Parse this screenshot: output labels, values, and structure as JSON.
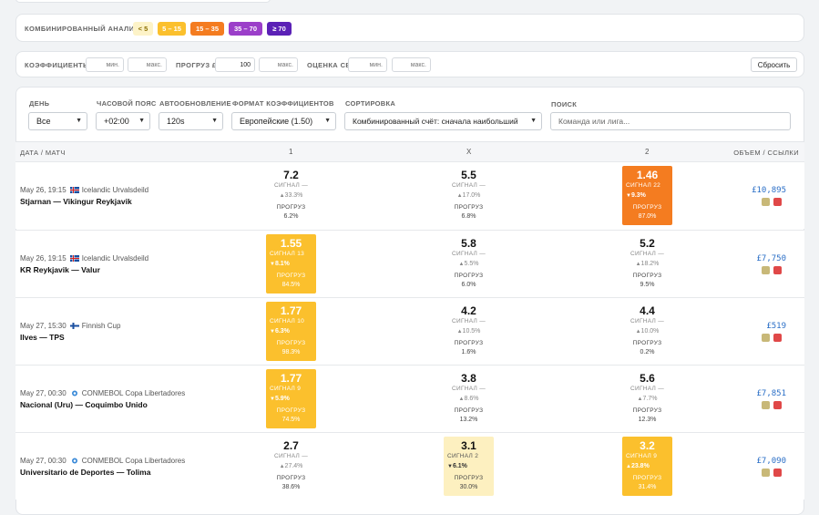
{
  "combined": {
    "label": "Комбинированный анализ",
    "chips": [
      {
        "label": "< 5",
        "bg": "#fdf3c8",
        "fg": "#8a6d00"
      },
      {
        "label": "5 – 15",
        "bg": "#fbc02d",
        "fg": "#ffffff"
      },
      {
        "label": "15 – 35",
        "bg": "#f47c20",
        "fg": "#ffffff"
      },
      {
        "label": "35 – 70",
        "bg": "#9b3fc9",
        "fg": "#ffffff"
      },
      {
        "label": "≥ 70",
        "bg": "#5b21b6",
        "fg": "#ffffff"
      }
    ]
  },
  "filters": {
    "odds_label": "Коэффициенты",
    "min": "мин.",
    "max": "макс.",
    "forecast_label": "Прогруз £",
    "forecast_value": "100",
    "cb_label": "Оценка CB",
    "reset": "Сбросить"
  },
  "controls": {
    "day": {
      "label": "День",
      "value": "Все"
    },
    "tz": {
      "label": "Часовой пояс",
      "value": "+02:00"
    },
    "refresh": {
      "label": "Автообновление",
      "value": "120s"
    },
    "format": {
      "label": "Формат коэффициентов",
      "value": "Европейские (1.50)"
    },
    "sort": {
      "label": "Сортировка",
      "value": "Комбинированный счёт: сначала наибольший"
    },
    "search": {
      "label": "Поиск",
      "placeholder": "Команда или лига..."
    }
  },
  "table": {
    "headers": {
      "match": "Дата / Матч",
      "c1": "1",
      "cx": "X",
      "c2": "2",
      "vol": "Объем / ссылки"
    },
    "signal_label": "Сигнал",
    "forecast_label": "Прогруз",
    "rows": [
      {
        "date": "May 26, 19:15",
        "league": "Icelandic Urvalsdeild",
        "home": "Stjarnan",
        "away": "Vikingur Reykjavik",
        "volume": "£10,895",
        "cells": [
          {
            "odd": "7.2",
            "signal": "Сигнал —",
            "dir": "up",
            "change": "33.3%",
            "forecast": "6.2%",
            "hl": ""
          },
          {
            "odd": "5.5",
            "signal": "Сигнал —",
            "dir": "up",
            "change": "17.0%",
            "forecast": "6.8%",
            "hl": ""
          },
          {
            "odd": "1.46",
            "signal": "Сигнал 22",
            "dir": "down",
            "change": "9.3%",
            "forecast": "87.0%",
            "hl": "#f47c20"
          }
        ]
      },
      {
        "date": "May 26, 19:15",
        "league": "Icelandic Urvalsdeild",
        "home": "KR Reykjavik",
        "away": "Valur",
        "volume": "£7,750",
        "cells": [
          {
            "odd": "1.55",
            "signal": "Сигнал 13",
            "dir": "down",
            "change": "8.1%",
            "forecast": "84.5%",
            "hl": "#fbc02d"
          },
          {
            "odd": "5.8",
            "signal": "Сигнал —",
            "dir": "up",
            "change": "5.5%",
            "forecast": "6.0%",
            "hl": ""
          },
          {
            "odd": "5.2",
            "signal": "Сигнал —",
            "dir": "up",
            "change": "18.2%",
            "forecast": "9.5%",
            "hl": ""
          }
        ]
      },
      {
        "date": "May 27, 15:30",
        "league": "Finnish Cup",
        "home": "Ilves",
        "away": "TPS",
        "volume": "£519",
        "cells": [
          {
            "odd": "1.77",
            "signal": "Сигнал 10",
            "dir": "down",
            "change": "6.3%",
            "forecast": "98.3%",
            "hl": "#fbc02d"
          },
          {
            "odd": "4.2",
            "signal": "Сигнал —",
            "dir": "up",
            "change": "10.5%",
            "forecast": "1.6%",
            "hl": ""
          },
          {
            "odd": "4.4",
            "signal": "Сигнал —",
            "dir": "up",
            "change": "10.0%",
            "forecast": "0.2%",
            "hl": ""
          }
        ]
      },
      {
        "date": "May 27, 00:30",
        "league": "CONMEBOL Copa Libertadores",
        "home": "Nacional (Uru)",
        "away": "Coquimbo Unido",
        "volume": "£7,851",
        "cells": [
          {
            "odd": "1.77",
            "signal": "Сигнал 9",
            "dir": "down",
            "change": "5.9%",
            "forecast": "74.5%",
            "hl": "#fbc02d"
          },
          {
            "odd": "3.8",
            "signal": "Сигнал —",
            "dir": "up",
            "change": "8.6%",
            "forecast": "13.2%",
            "hl": ""
          },
          {
            "odd": "5.6",
            "signal": "Сигнал —",
            "dir": "up",
            "change": "7.7%",
            "forecast": "12.3%",
            "hl": ""
          }
        ]
      },
      {
        "date": "May 27, 00:30",
        "league": "CONMEBOL Copa Libertadores",
        "home": "Universitario de Deportes",
        "away": "Tolima",
        "volume": "£7,090",
        "cells": [
          {
            "odd": "2.7",
            "signal": "Сигнал —",
            "dir": "up",
            "change": "27.4%",
            "forecast": "38.6%",
            "hl": ""
          },
          {
            "odd": "3.1",
            "signal": "Сигнал 2",
            "dir": "down",
            "change": "6.1%",
            "forecast": "30.0%",
            "hl": "#fdf0c0"
          },
          {
            "odd": "3.2",
            "signal": "Сигнал 9",
            "dir": "up",
            "change": "23.8%",
            "forecast": "31.4%",
            "hl": "#fbc02d"
          }
        ]
      }
    ]
  }
}
